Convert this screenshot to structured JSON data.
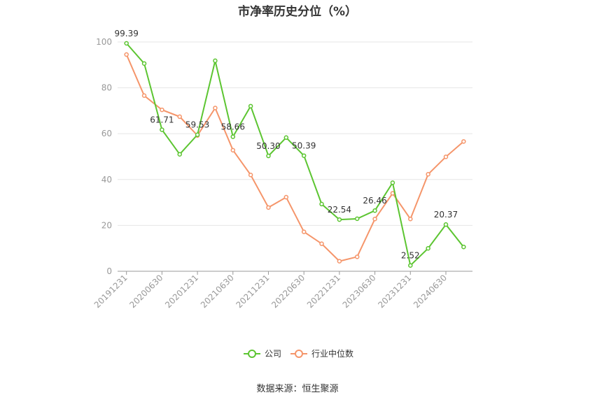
{
  "chart_data": {
    "type": "line",
    "title": "市净率历史分位（%）",
    "source": "数据来源：恒生聚源",
    "x": [
      "20191231",
      "20200331",
      "20200630",
      "20200930",
      "20201231",
      "20210331",
      "20210630",
      "20210930",
      "20211231",
      "20220331",
      "20220630",
      "20220930",
      "20221231",
      "20230331",
      "20230630",
      "20230930",
      "20231231",
      "20240331",
      "20240630",
      "20240930"
    ],
    "x_tick_labels": [
      "20191231",
      "20200630",
      "20201231",
      "20210630",
      "20211231",
      "20220630",
      "20221231",
      "20230630",
      "20231231",
      "20240630"
    ],
    "y_ticks": [
      0,
      20,
      40,
      60,
      80,
      100
    ],
    "ylim": [
      0,
      100
    ],
    "grid": "horizontal",
    "legend_position": "bottom",
    "series": [
      {
        "name": "公司",
        "color": "#5cc531",
        "values": [
          99.39,
          90.6,
          61.71,
          51.0,
          59.53,
          91.8,
          58.66,
          72.0,
          50.3,
          58.3,
          50.39,
          29.3,
          22.54,
          22.9,
          26.46,
          38.6,
          2.52,
          10.0,
          20.37,
          10.6
        ],
        "labels": {
          "0": "99.39",
          "2": "61.71",
          "4": "59.53",
          "6": "58.66",
          "8": "50.30",
          "10": "50.39",
          "12": "22.54",
          "14": "26.46",
          "16": "2.52",
          "18": "20.37"
        }
      },
      {
        "name": "行业中位数",
        "color": "#f5956a",
        "values": [
          94.5,
          76.6,
          70.4,
          67.4,
          59.2,
          71.2,
          52.8,
          42.0,
          27.8,
          32.3,
          17.2,
          12.0,
          4.4,
          6.3,
          22.8,
          34.0,
          22.8,
          42.3,
          49.9,
          56.6
        ]
      }
    ]
  }
}
